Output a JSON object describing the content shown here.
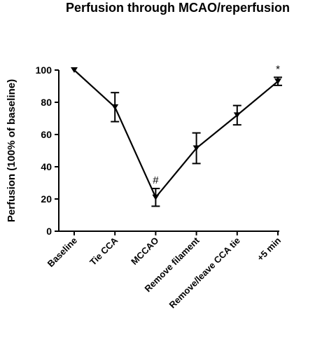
{
  "chart_data": {
    "type": "line",
    "title": "Perfusion through MCAO/reperfusion",
    "xlabel": "",
    "ylabel": "Perfusion (100% of baseline)",
    "ylim": [
      0,
      100
    ],
    "yticks": [
      0,
      20,
      40,
      60,
      80,
      100
    ],
    "grid": false,
    "legend": "none",
    "categories": [
      "Baseline",
      "Tie CCA",
      "MCCAO",
      "Remove filament",
      "Remove/leave CCA tie",
      "+5 min"
    ],
    "series": [
      {
        "values": [
          100,
          77,
          21,
          51.5,
          72,
          93
        ],
        "error": [
          0,
          9,
          5.5,
          9.5,
          6,
          2.5
        ],
        "color": "#000000",
        "marker": "triangle-down"
      }
    ],
    "annotations": [
      {
        "category_index": 2,
        "text": "#"
      },
      {
        "category_index": 5,
        "text": "*"
      }
    ]
  }
}
